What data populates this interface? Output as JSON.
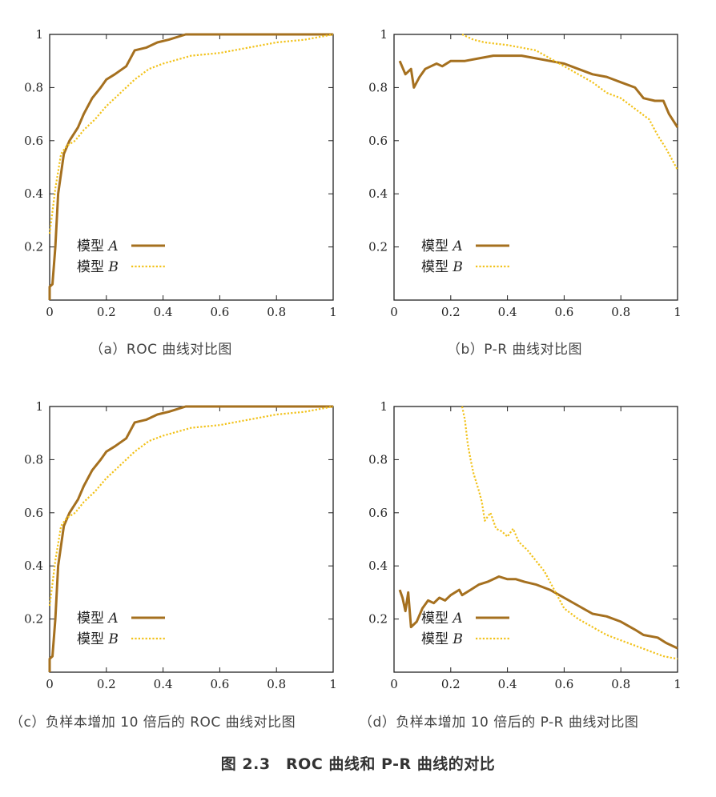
{
  "colors": {
    "model_a": "#a5701f",
    "model_b": "#f2c21a",
    "frame": "#222222"
  },
  "figure_caption": "图 2.3　ROC 曲线和 P-R 曲线的对比",
  "chart_data": [
    {
      "type": "line",
      "caption": "（a）ROC 曲线对比图",
      "xlim": [
        0,
        1
      ],
      "ylim": [
        0,
        1
      ],
      "xticks": [
        "0",
        "0.2",
        "0.4",
        "0.6",
        "0.8",
        "1"
      ],
      "yticks": [
        "0.2",
        "0.4",
        "0.6",
        "0.8",
        "1"
      ],
      "legend": {
        "position": "bottom-left"
      },
      "series": [
        {
          "name": "模型 A",
          "style": "solid",
          "points": [
            [
              0,
              0
            ],
            [
              0,
              0.05
            ],
            [
              0.01,
              0.06
            ],
            [
              0.02,
              0.2
            ],
            [
              0.03,
              0.4
            ],
            [
              0.05,
              0.55
            ],
            [
              0.07,
              0.6
            ],
            [
              0.1,
              0.65
            ],
            [
              0.12,
              0.7
            ],
            [
              0.15,
              0.76
            ],
            [
              0.18,
              0.8
            ],
            [
              0.2,
              0.83
            ],
            [
              0.23,
              0.85
            ],
            [
              0.27,
              0.88
            ],
            [
              0.3,
              0.94
            ],
            [
              0.34,
              0.95
            ],
            [
              0.38,
              0.97
            ],
            [
              0.42,
              0.98
            ],
            [
              0.48,
              1.0
            ],
            [
              0.6,
              1.0
            ],
            [
              1,
              1.0
            ]
          ]
        },
        {
          "name": "模型 B",
          "style": "dotted",
          "points": [
            [
              0,
              0.25
            ],
            [
              0.02,
              0.42
            ],
            [
              0.04,
              0.55
            ],
            [
              0.06,
              0.58
            ],
            [
              0.09,
              0.6
            ],
            [
              0.12,
              0.64
            ],
            [
              0.16,
              0.68
            ],
            [
              0.2,
              0.73
            ],
            [
              0.25,
              0.78
            ],
            [
              0.3,
              0.83
            ],
            [
              0.35,
              0.87
            ],
            [
              0.4,
              0.89
            ],
            [
              0.5,
              0.92
            ],
            [
              0.6,
              0.93
            ],
            [
              0.7,
              0.95
            ],
            [
              0.8,
              0.97
            ],
            [
              0.9,
              0.98
            ],
            [
              1,
              1.0
            ]
          ]
        }
      ]
    },
    {
      "type": "line",
      "caption": "（b）P-R 曲线对比图",
      "xlim": [
        0,
        1
      ],
      "ylim": [
        0,
        1
      ],
      "xticks": [
        "0",
        "0.2",
        "0.4",
        "0.6",
        "0.8",
        "1"
      ],
      "yticks": [
        "0.2",
        "0.4",
        "0.6",
        "0.8",
        "1"
      ],
      "legend": {
        "position": "bottom-left"
      },
      "series": [
        {
          "name": "模型 A",
          "style": "solid",
          "points": [
            [
              0.02,
              0.9
            ],
            [
              0.04,
              0.85
            ],
            [
              0.06,
              0.87
            ],
            [
              0.07,
              0.8
            ],
            [
              0.09,
              0.84
            ],
            [
              0.11,
              0.87
            ],
            [
              0.13,
              0.88
            ],
            [
              0.15,
              0.89
            ],
            [
              0.17,
              0.88
            ],
            [
              0.2,
              0.9
            ],
            [
              0.25,
              0.9
            ],
            [
              0.3,
              0.91
            ],
            [
              0.35,
              0.92
            ],
            [
              0.4,
              0.92
            ],
            [
              0.45,
              0.92
            ],
            [
              0.5,
              0.91
            ],
            [
              0.55,
              0.9
            ],
            [
              0.6,
              0.89
            ],
            [
              0.65,
              0.87
            ],
            [
              0.7,
              0.85
            ],
            [
              0.75,
              0.84
            ],
            [
              0.8,
              0.82
            ],
            [
              0.85,
              0.8
            ],
            [
              0.88,
              0.76
            ],
            [
              0.92,
              0.75
            ],
            [
              0.95,
              0.75
            ],
            [
              0.97,
              0.7
            ],
            [
              1,
              0.65
            ]
          ]
        },
        {
          "name": "模型 B",
          "style": "dotted",
          "points": [
            [
              0.24,
              1.0
            ],
            [
              0.28,
              0.98
            ],
            [
              0.32,
              0.97
            ],
            [
              0.4,
              0.96
            ],
            [
              0.45,
              0.95
            ],
            [
              0.5,
              0.94
            ],
            [
              0.55,
              0.91
            ],
            [
              0.6,
              0.88
            ],
            [
              0.65,
              0.85
            ],
            [
              0.7,
              0.82
            ],
            [
              0.75,
              0.78
            ],
            [
              0.8,
              0.76
            ],
            [
              0.85,
              0.72
            ],
            [
              0.9,
              0.68
            ],
            [
              0.93,
              0.62
            ],
            [
              0.96,
              0.57
            ],
            [
              1,
              0.49
            ]
          ]
        }
      ]
    },
    {
      "type": "line",
      "caption": "（c）负样本增加 10 倍后的 ROC 曲线对比图",
      "xlim": [
        0,
        1
      ],
      "ylim": [
        0,
        1
      ],
      "xticks": [
        "0",
        "0.2",
        "0.4",
        "0.6",
        "0.8",
        "1"
      ],
      "yticks": [
        "0.2",
        "0.4",
        "0.6",
        "0.8",
        "1"
      ],
      "legend": {
        "position": "bottom-left"
      },
      "series": [
        {
          "name": "模型 A",
          "style": "solid",
          "points": [
            [
              0,
              0
            ],
            [
              0,
              0.05
            ],
            [
              0.01,
              0.06
            ],
            [
              0.02,
              0.2
            ],
            [
              0.03,
              0.4
            ],
            [
              0.05,
              0.55
            ],
            [
              0.07,
              0.6
            ],
            [
              0.1,
              0.65
            ],
            [
              0.12,
              0.7
            ],
            [
              0.15,
              0.76
            ],
            [
              0.18,
              0.8
            ],
            [
              0.2,
              0.83
            ],
            [
              0.23,
              0.85
            ],
            [
              0.27,
              0.88
            ],
            [
              0.3,
              0.94
            ],
            [
              0.34,
              0.95
            ],
            [
              0.38,
              0.97
            ],
            [
              0.42,
              0.98
            ],
            [
              0.48,
              1.0
            ],
            [
              0.6,
              1.0
            ],
            [
              1,
              1.0
            ]
          ]
        },
        {
          "name": "模型 B",
          "style": "dotted",
          "points": [
            [
              0,
              0.25
            ],
            [
              0.02,
              0.42
            ],
            [
              0.04,
              0.55
            ],
            [
              0.06,
              0.58
            ],
            [
              0.09,
              0.6
            ],
            [
              0.12,
              0.64
            ],
            [
              0.16,
              0.68
            ],
            [
              0.2,
              0.73
            ],
            [
              0.25,
              0.78
            ],
            [
              0.3,
              0.83
            ],
            [
              0.35,
              0.87
            ],
            [
              0.4,
              0.89
            ],
            [
              0.5,
              0.92
            ],
            [
              0.6,
              0.93
            ],
            [
              0.7,
              0.95
            ],
            [
              0.8,
              0.97
            ],
            [
              0.9,
              0.98
            ],
            [
              1,
              1.0
            ]
          ]
        }
      ]
    },
    {
      "type": "line",
      "caption": "（d）负样本增加 10 倍后的 P-R 曲线对比图",
      "xlim": [
        0,
        1
      ],
      "ylim": [
        0,
        1
      ],
      "xticks": [
        "0",
        "0.2",
        "0.4",
        "0.6",
        "0.8",
        "1"
      ],
      "yticks": [
        "0.2",
        "0.4",
        "0.6",
        "0.8",
        "1"
      ],
      "legend": {
        "position": "bottom-left"
      },
      "series": [
        {
          "name": "模型 A",
          "style": "solid",
          "points": [
            [
              0.02,
              0.31
            ],
            [
              0.03,
              0.28
            ],
            [
              0.04,
              0.23
            ],
            [
              0.05,
              0.3
            ],
            [
              0.06,
              0.17
            ],
            [
              0.08,
              0.19
            ],
            [
              0.1,
              0.24
            ],
            [
              0.12,
              0.27
            ],
            [
              0.14,
              0.26
            ],
            [
              0.16,
              0.28
            ],
            [
              0.18,
              0.27
            ],
            [
              0.2,
              0.29
            ],
            [
              0.23,
              0.31
            ],
            [
              0.24,
              0.29
            ],
            [
              0.27,
              0.31
            ],
            [
              0.3,
              0.33
            ],
            [
              0.33,
              0.34
            ],
            [
              0.37,
              0.36
            ],
            [
              0.4,
              0.35
            ],
            [
              0.43,
              0.35
            ],
            [
              0.46,
              0.34
            ],
            [
              0.5,
              0.33
            ],
            [
              0.55,
              0.31
            ],
            [
              0.6,
              0.28
            ],
            [
              0.65,
              0.25
            ],
            [
              0.7,
              0.22
            ],
            [
              0.75,
              0.21
            ],
            [
              0.8,
              0.19
            ],
            [
              0.85,
              0.16
            ],
            [
              0.88,
              0.14
            ],
            [
              0.93,
              0.13
            ],
            [
              0.96,
              0.11
            ],
            [
              1,
              0.09
            ]
          ]
        },
        {
          "name": "模型 B",
          "style": "dotted",
          "points": [
            [
              0.24,
              1.0
            ],
            [
              0.25,
              0.95
            ],
            [
              0.26,
              0.86
            ],
            [
              0.27,
              0.8
            ],
            [
              0.28,
              0.75
            ],
            [
              0.3,
              0.68
            ],
            [
              0.31,
              0.64
            ],
            [
              0.32,
              0.57
            ],
            [
              0.34,
              0.6
            ],
            [
              0.36,
              0.54
            ],
            [
              0.38,
              0.53
            ],
            [
              0.4,
              0.51
            ],
            [
              0.42,
              0.54
            ],
            [
              0.44,
              0.49
            ],
            [
              0.47,
              0.46
            ],
            [
              0.5,
              0.42
            ],
            [
              0.53,
              0.38
            ],
            [
              0.55,
              0.34
            ],
            [
              0.57,
              0.3
            ],
            [
              0.6,
              0.24
            ],
            [
              0.65,
              0.2
            ],
            [
              0.7,
              0.17
            ],
            [
              0.75,
              0.14
            ],
            [
              0.8,
              0.12
            ],
            [
              0.85,
              0.1
            ],
            [
              0.9,
              0.08
            ],
            [
              0.95,
              0.06
            ],
            [
              1,
              0.05
            ]
          ]
        }
      ]
    }
  ]
}
